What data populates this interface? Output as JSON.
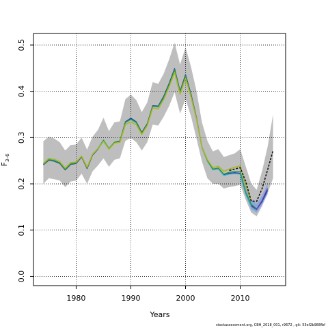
{
  "chart_data": {
    "type": "line",
    "xlabel": "Years",
    "ylabel": "F",
    "ylabel_subscript": "3–6",
    "xlim": [
      1972.2,
      2018.3
    ],
    "ylim": [
      -0.02,
      0.525
    ],
    "x_ticks": [
      1980,
      1990,
      2000,
      2010
    ],
    "x_tick_labels": [
      "1980",
      "1990",
      "2000",
      "2010"
    ],
    "y_ticks": [
      0.0,
      0.1,
      0.2,
      0.3,
      0.4,
      0.5
    ],
    "y_tick_labels": [
      "0.0",
      "0.1",
      "0.2",
      "0.3",
      "0.4",
      "0.5"
    ],
    "grid": true,
    "band": {
      "color": "#bebebe",
      "x": [
        1974,
        1975,
        1976,
        1977,
        1978,
        1979,
        1980,
        1981,
        1982,
        1983,
        1984,
        1985,
        1986,
        1987,
        1988,
        1989,
        1990,
        1991,
        1992,
        1993,
        1994,
        1995,
        1996,
        1997,
        1998,
        1999,
        2000,
        2001,
        2002,
        2003,
        2004,
        2005,
        2006,
        2007,
        2008,
        2009,
        2010,
        2011,
        2012,
        2013,
        2014,
        2015,
        2016
      ],
      "upper": [
        0.292,
        0.302,
        0.298,
        0.29,
        0.272,
        0.284,
        0.285,
        0.3,
        0.274,
        0.302,
        0.317,
        0.343,
        0.314,
        0.333,
        0.335,
        0.383,
        0.393,
        0.381,
        0.355,
        0.376,
        0.42,
        0.416,
        0.438,
        0.469,
        0.505,
        0.458,
        0.495,
        0.453,
        0.401,
        0.333,
        0.293,
        0.27,
        0.275,
        0.258,
        0.262,
        0.266,
        0.275,
        0.238,
        0.201,
        0.187,
        0.228,
        0.28,
        0.35
      ],
      "lower": [
        0.2,
        0.212,
        0.21,
        0.207,
        0.193,
        0.205,
        0.207,
        0.222,
        0.2,
        0.227,
        0.24,
        0.255,
        0.237,
        0.252,
        0.255,
        0.293,
        0.299,
        0.29,
        0.272,
        0.29,
        0.328,
        0.326,
        0.345,
        0.368,
        0.398,
        0.352,
        0.383,
        0.346,
        0.298,
        0.248,
        0.212,
        0.2,
        0.2,
        0.19,
        0.193,
        0.195,
        0.198,
        0.166,
        0.138,
        0.13,
        0.152,
        0.18,
        0.212
      ]
    },
    "band_inner": {
      "color": "#88a8e0",
      "x": [
        2010,
        2011,
        2012,
        2013,
        2014,
        2015
      ],
      "upper": [
        0.228,
        0.2,
        0.166,
        0.157,
        0.175,
        0.2
      ],
      "lower": [
        0.212,
        0.175,
        0.145,
        0.138,
        0.155,
        0.178
      ]
    },
    "series": [
      {
        "color": "#1a3a9a",
        "width": 1.3,
        "x": [
          1974,
          1975,
          1976,
          1977,
          1978,
          1979,
          1980,
          1981,
          1982,
          1983,
          1984,
          1985,
          1986,
          1987,
          1988,
          1989,
          1990,
          1991,
          1992,
          1993,
          1994,
          1995,
          1996,
          1997,
          1998,
          1999,
          2000,
          2001,
          2002,
          2003,
          2004,
          2005,
          2006,
          2007,
          2008,
          2009,
          2010,
          2011,
          2012,
          2013,
          2014,
          2015
        ],
        "values": [
          0.241,
          0.251,
          0.249,
          0.244,
          0.23,
          0.242,
          0.244,
          0.258,
          0.233,
          0.262,
          0.275,
          0.294,
          0.275,
          0.289,
          0.292,
          0.334,
          0.342,
          0.334,
          0.311,
          0.33,
          0.369,
          0.368,
          0.389,
          0.417,
          0.449,
          0.4,
          0.436,
          0.394,
          0.343,
          0.28,
          0.251,
          0.232,
          0.234,
          0.22,
          0.223,
          0.224,
          0.223,
          0.18,
          0.155,
          0.145,
          0.162,
          0.186
        ]
      },
      {
        "color": "#2eb8c8",
        "width": 1.3,
        "x": [
          1974,
          1975,
          1976,
          1977,
          1978,
          1979,
          1980,
          1981,
          1982,
          1983,
          1984,
          1985,
          1986,
          1987,
          1988,
          1989,
          1990,
          1991,
          1992,
          1993,
          1994,
          1995,
          1996,
          1997,
          1998,
          1999,
          2000,
          2001,
          2002,
          2003,
          2004,
          2005,
          2006,
          2007,
          2008,
          2009,
          2010,
          2011,
          2012,
          2013
        ],
        "values": [
          0.243,
          0.253,
          0.251,
          0.246,
          0.232,
          0.244,
          0.246,
          0.26,
          0.235,
          0.264,
          0.277,
          0.295,
          0.277,
          0.29,
          0.293,
          0.332,
          0.339,
          0.332,
          0.31,
          0.328,
          0.367,
          0.366,
          0.386,
          0.414,
          0.446,
          0.397,
          0.432,
          0.39,
          0.34,
          0.278,
          0.249,
          0.23,
          0.232,
          0.218,
          0.221,
          0.222,
          0.221,
          0.178,
          0.152,
          0.142
        ]
      },
      {
        "color": "#2f8f4a",
        "width": 1.3,
        "x": [
          1974,
          1975,
          1976,
          1977,
          1978,
          1979,
          1980,
          1981,
          1982,
          1983,
          1984,
          1985,
          1986,
          1987,
          1988,
          1989,
          1990,
          1991,
          1992,
          1993,
          1994,
          1995,
          1996,
          1997,
          1998,
          1999,
          2000,
          2001,
          2002,
          2003,
          2004,
          2005,
          2006,
          2007,
          2008,
          2009,
          2010,
          2011,
          2012,
          2013
        ],
        "values": [
          0.242,
          0.252,
          0.25,
          0.245,
          0.231,
          0.243,
          0.245,
          0.259,
          0.234,
          0.263,
          0.276,
          0.294,
          0.276,
          0.29,
          0.293,
          0.333,
          0.34,
          0.333,
          0.31,
          0.329,
          0.368,
          0.367,
          0.387,
          0.415,
          0.447,
          0.398,
          0.434,
          0.392,
          0.342,
          0.279,
          0.25,
          0.232,
          0.234,
          0.221,
          0.225,
          0.227,
          0.226,
          0.182,
          0.156,
          0.146
        ]
      },
      {
        "color": "#a8b820",
        "width": 1.6,
        "x": [
          1974,
          1975,
          1976,
          1977,
          1978,
          1979,
          1980,
          1981,
          1982,
          1983,
          1984,
          1985,
          1986,
          1987,
          1988,
          1989,
          1990,
          1991,
          1992,
          1993,
          1994,
          1995,
          1996,
          1997,
          1998,
          1999,
          2000,
          2001,
          2002,
          2003,
          2004,
          2005,
          2006,
          2007,
          2008,
          2009,
          2010,
          2011,
          2012
        ],
        "values": [
          0.244,
          0.255,
          0.253,
          0.248,
          0.234,
          0.246,
          0.247,
          0.26,
          0.236,
          0.264,
          0.276,
          0.292,
          0.275,
          0.288,
          0.29,
          0.328,
          0.334,
          0.328,
          0.307,
          0.326,
          0.364,
          0.362,
          0.382,
          0.41,
          0.441,
          0.394,
          0.428,
          0.388,
          0.34,
          0.28,
          0.252,
          0.235,
          0.238,
          0.227,
          0.232,
          0.236,
          0.239,
          0.196,
          0.163
        ]
      },
      {
        "color": "#6a3aa0",
        "width": 1.3,
        "x": [
          2012,
          2013,
          2014,
          2015
        ],
        "values": [
          0.152,
          0.145,
          0.164,
          0.19
        ]
      },
      {
        "color": "#111111",
        "width": 1.6,
        "dash": "3,2",
        "x": [
          2008,
          2009,
          2010,
          2011,
          2012,
          2013,
          2014,
          2015,
          2016
        ],
        "values": [
          0.229,
          0.232,
          0.235,
          0.205,
          0.163,
          0.162,
          0.19,
          0.23,
          0.272
        ]
      }
    ]
  },
  "footer": {
    "note": "stockassessment.org, CBH_2018_001, r9672 , git: 53ef2b988fbf"
  }
}
